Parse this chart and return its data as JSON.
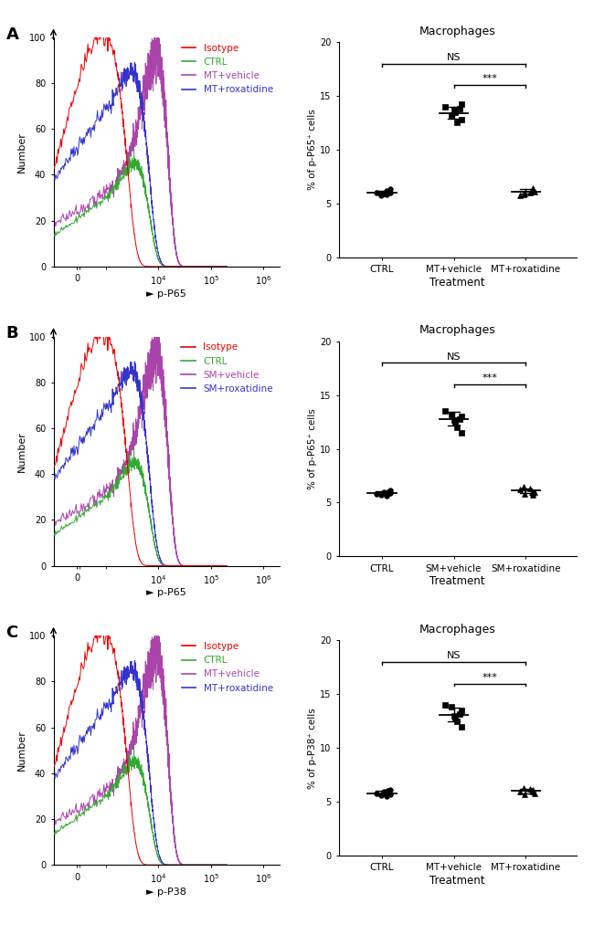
{
  "panels": [
    {
      "label": "A",
      "flow_xlabel": "p-P65",
      "flow_legend": [
        "Isotype",
        "CTRL",
        "MT+vehicle",
        "MT+roxatidine"
      ],
      "flow_colors": [
        "#EE0000",
        "#33AA33",
        "#AA44AA",
        "#3333CC"
      ],
      "scatter_title": "Macrophages",
      "scatter_ylabel": "% of p-P65⁺ cells",
      "scatter_groups": [
        "CTRL",
        "MT+vehicle",
        "MT+roxatidine"
      ],
      "scatter_data": {
        "CTRL": [
          5.8,
          6.0,
          6.1,
          6.3,
          6.0,
          5.7,
          5.9,
          6.2
        ],
        "MT+vehicle": [
          13.5,
          14.2,
          12.8,
          13.8,
          14.0,
          12.5,
          13.2,
          13.7
        ],
        "MT+roxatidine": [
          5.9,
          6.2,
          6.0,
          6.4,
          5.8,
          6.1,
          6.3,
          5.7
        ]
      },
      "scatter_means": [
        6.0,
        13.4,
        6.1
      ]
    },
    {
      "label": "B",
      "flow_xlabel": "p-P65",
      "flow_legend": [
        "Isotype",
        "CTRL",
        "SM+vehicle",
        "SM+roxatidine"
      ],
      "flow_colors": [
        "#EE0000",
        "#33AA33",
        "#AA44AA",
        "#3333CC"
      ],
      "scatter_title": "Macrophages",
      "scatter_ylabel": "% of p-P65⁺ cells",
      "scatter_groups": [
        "CTRL",
        "SM+vehicle",
        "SM+roxatidine"
      ],
      "scatter_data": {
        "CTRL": [
          5.6,
          5.8,
          6.0,
          5.9,
          6.1,
          5.7,
          6.0,
          5.8
        ],
        "SM+vehicle": [
          12.5,
          13.0,
          11.5,
          12.8,
          13.5,
          12.0,
          13.2,
          12.7
        ],
        "SM+roxatidine": [
          5.8,
          6.0,
          6.3,
          5.9,
          6.5,
          6.0,
          5.7,
          6.2
        ]
      },
      "scatter_means": [
        5.9,
        12.8,
        6.1
      ]
    },
    {
      "label": "C",
      "flow_xlabel": "p-P38",
      "flow_legend": [
        "Isotype",
        "CTRL",
        "MT+vehicle",
        "MT+roxatidine"
      ],
      "flow_colors": [
        "#EE0000",
        "#33AA33",
        "#AA44AA",
        "#3333CC"
      ],
      "scatter_title": "Macrophages",
      "scatter_ylabel": "% of p-P38⁺ cells",
      "scatter_groups": [
        "CTRL",
        "MT+vehicle",
        "MT+roxatidine"
      ],
      "scatter_data": {
        "CTRL": [
          5.5,
          5.8,
          6.0,
          5.7,
          6.1,
          5.6,
          5.9,
          5.8
        ],
        "MT+vehicle": [
          12.8,
          13.5,
          12.0,
          13.2,
          14.0,
          12.5,
          13.8,
          13.0
        ],
        "MT+roxatidine": [
          5.7,
          6.0,
          6.2,
          5.9,
          6.3,
          5.8,
          6.1,
          5.9
        ]
      },
      "scatter_means": [
        5.8,
        13.1,
        6.0
      ]
    }
  ]
}
